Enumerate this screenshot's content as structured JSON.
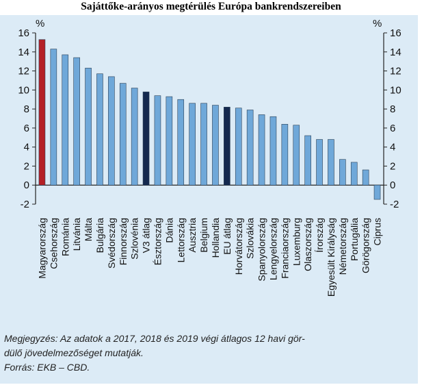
{
  "chart_data": {
    "type": "bar",
    "title": "Sajáttőke-arányos megtérülés Európa bankrendszereiben",
    "unit_left": "%",
    "unit_right": "%",
    "ylim": [
      -2,
      16
    ],
    "yticks": [
      -2,
      0,
      2,
      4,
      6,
      8,
      10,
      12,
      14,
      16
    ],
    "categories": [
      "Magyarország",
      "Csehország",
      "Románia",
      "Litvánia",
      "Málta",
      "Bulgária",
      "Svédország",
      "Finnország",
      "Szlovénia",
      "V3 átlag",
      "Észtország",
      "Dánia",
      "Lettország",
      "Ausztria",
      "Belgium",
      "Hollandia",
      "EU átlag",
      "Horvátország",
      "Szlovákia",
      "Spanyolország",
      "Lengyelország",
      "Franciaország",
      "Luxemburg",
      "Olaszország",
      "Írország",
      "Egyesült Királyság",
      "Németország",
      "Portugália",
      "Görögország",
      "Ciprus"
    ],
    "values": [
      15.3,
      14.3,
      13.7,
      13.4,
      12.3,
      11.7,
      11.4,
      10.7,
      10.2,
      9.8,
      9.4,
      9.3,
      9.0,
      8.6,
      8.6,
      8.4,
      8.2,
      8.1,
      7.9,
      7.4,
      7.2,
      6.4,
      6.3,
      5.2,
      4.8,
      4.8,
      2.7,
      2.4,
      1.6,
      -1.5
    ],
    "colors": {
      "default": "#6fa8d9",
      "highlight": "#b42026",
      "average": "#14294f"
    },
    "highlight_categories": [
      "Magyarország"
    ],
    "average_categories": [
      "V3 átlag",
      "EU átlag"
    ]
  },
  "notes": {
    "note": "Megjegyzés: Az adatok a 2017, 2018 és 2019 végi átlagos 12 havi gör-dülő jövedelmezőséget mutatják.",
    "note_line1": "Megjegyzés: Az adatok a 2017, 2018 és 2019 végi átlagos 12 havi gör-",
    "note_line2": "dülő jövedelmezőséget mutatják.",
    "source": "Forrás: EKB – CBD."
  }
}
